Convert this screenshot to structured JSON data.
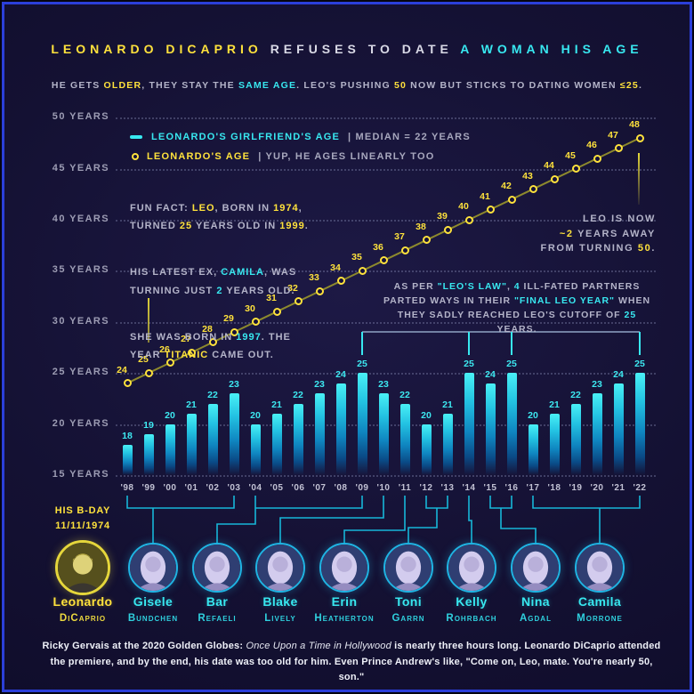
{
  "title_segments": [
    {
      "t": "LEONARDO DICAPRIO ",
      "s": "y"
    },
    {
      "t": "REFUSES TO DATE ",
      "s": "w"
    },
    {
      "t": "A WOMAN HIS AGE",
      "s": "c"
    }
  ],
  "subtitle_segments": [
    {
      "t": "HE GETS ",
      "s": "g"
    },
    {
      "t": "OLDER",
      "s": "y"
    },
    {
      "t": ", THEY STAY THE ",
      "s": "g"
    },
    {
      "t": "SAME AGE",
      "s": "c"
    },
    {
      "t": ". LEO'S PUSHING ",
      "s": "g"
    },
    {
      "t": "50",
      "s": "y"
    },
    {
      "t": " NOW BUT STICKS TO DATING WOMEN ",
      "s": "g"
    },
    {
      "t": "≤25",
      "s": "y"
    },
    {
      "t": ".",
      "s": "g"
    }
  ],
  "legend": {
    "girlfriend": {
      "label": "LEONARDO'S GIRLFRIEND'S AGE",
      "note": "|   MEDIAN = 22 YEARS"
    },
    "leo": {
      "label": "LEONARDO'S AGE",
      "note": "|   YUP, HE AGES LINEARLY TOO"
    }
  },
  "annotations": {
    "fun_fact": [
      [
        {
          "t": "FUN FACT: ",
          "s": "g"
        },
        {
          "t": "LEO",
          "s": "y"
        },
        {
          "t": ", BORN IN ",
          "s": "g"
        },
        {
          "t": "1974",
          "s": "y"
        },
        {
          "t": ",\nTURNED ",
          "s": "g"
        },
        {
          "t": "25",
          "s": "y"
        },
        {
          "t": " YEARS OLD IN ",
          "s": "g"
        },
        {
          "t": "1999",
          "s": "y"
        },
        {
          "t": ".",
          "s": "g"
        }
      ],
      [
        {
          "t": "HIS LATEST EX, ",
          "s": "g"
        },
        {
          "t": "CAMILA",
          "s": "c"
        },
        {
          "t": ", WAS\nTURNING JUST ",
          "s": "g"
        },
        {
          "t": "2",
          "s": "c"
        },
        {
          "t": " YEARS OLD.",
          "s": "g"
        }
      ],
      [
        {
          "t": "SHE WAS BORN IN ",
          "s": "g"
        },
        {
          "t": "1997",
          "s": "c"
        },
        {
          "t": ". THE\nYEAR ",
          "s": "g"
        },
        {
          "t": "TITANIC",
          "s": "y"
        },
        {
          "t": " CAME OUT.",
          "s": "g"
        }
      ]
    ],
    "leos_law": [
      {
        "t": "AS PER ",
        "s": "g"
      },
      {
        "t": "\"LEO'S LAW\"",
        "s": "c"
      },
      {
        "t": ", ",
        "s": "g"
      },
      {
        "t": "4",
        "s": "c"
      },
      {
        "t": " ILL-FATED PARTNERS\nPARTED WAYS IN THEIR ",
        "s": "g"
      },
      {
        "t": "\"FINAL LEO YEAR\"",
        "s": "c"
      },
      {
        "t": " WHEN\nTHEY SADLY REACHED LEO'S CUTOFF OF ",
        "s": "g"
      },
      {
        "t": "25",
        "s": "c"
      },
      {
        "t": " YEARS.",
        "s": "g"
      }
    ],
    "leo_now": [
      {
        "t": "LEO IS NOW\n",
        "s": "g"
      },
      {
        "t": "~2",
        "s": "y"
      },
      {
        "t": " YEARS AWAY\nFROM TURNING ",
        "s": "g"
      },
      {
        "t": "50",
        "s": "y"
      },
      {
        "t": ".",
        "s": "g"
      }
    ],
    "bday": "HIS B-DAY\n11/11/1974"
  },
  "chart_data": {
    "type": "bar+line",
    "x_labels": [
      "'98",
      "'99",
      "'00",
      "'01",
      "'02",
      "'03",
      "'04",
      "'05",
      "'06",
      "'07",
      "'08",
      "'09",
      "'10",
      "'11",
      "'12",
      "'13",
      "'14",
      "'15",
      "'16",
      "'17",
      "'18",
      "'19",
      "'20",
      "'21",
      "'22"
    ],
    "series": [
      {
        "name": "LEONARDO'S GIRLFRIEND'S AGE",
        "type": "bar",
        "values": [
          18,
          19,
          20,
          21,
          22,
          23,
          20,
          21,
          22,
          23,
          24,
          25,
          23,
          22,
          20,
          21,
          25,
          24,
          25,
          20,
          21,
          22,
          23,
          24,
          25
        ]
      },
      {
        "name": "LEONARDO'S AGE",
        "type": "line",
        "values": [
          24,
          25,
          26,
          27,
          28,
          29,
          30,
          31,
          32,
          33,
          34,
          35,
          36,
          37,
          38,
          39,
          40,
          41,
          42,
          43,
          44,
          45,
          46,
          47,
          48
        ]
      }
    ],
    "y_ticks": [
      {
        "value": 50,
        "label": "50 YEARS"
      },
      {
        "value": 45,
        "label": "45 YEARS"
      },
      {
        "value": 40,
        "label": "40 YEARS"
      },
      {
        "value": 35,
        "label": "35 YEARS"
      },
      {
        "value": 30,
        "label": "30 YEARS"
      },
      {
        "value": 25,
        "label": "25 YEARS"
      },
      {
        "value": 20,
        "label": "20 YEARS"
      },
      {
        "value": 15,
        "label": "15 YEARS"
      }
    ],
    "ylim": [
      15,
      50
    ],
    "grid": "dotted horizontal",
    "legend_position": "top-left inside plot",
    "median_girlfriend_age": 22,
    "law_year_indices": [
      11,
      16,
      18,
      24
    ]
  },
  "people": [
    {
      "first": "Leonardo",
      "last": "DiCaprio",
      "is_leo": true
    },
    {
      "first": "Gisele",
      "last": "Bundchen",
      "from": 0,
      "to": 5
    },
    {
      "first": "Bar",
      "last": "Refaeli",
      "from": 6,
      "to": 11
    },
    {
      "first": "Blake",
      "last": "Lively",
      "from": 12,
      "to": 12
    },
    {
      "first": "Erin",
      "last": "Heatherton",
      "from": 13,
      "to": 13
    },
    {
      "first": "Toni",
      "last": "Garrn",
      "from": 14,
      "to": 15
    },
    {
      "first": "Kelly",
      "last": "Rohrbach",
      "from": 16,
      "to": 16
    },
    {
      "first": "Nina",
      "last": "Agdal",
      "from": 17,
      "to": 18
    },
    {
      "first": "Camila",
      "last": "Morrone",
      "from": 19,
      "to": 24
    }
  ],
  "footer_segments": [
    {
      "t": "Ricky Gervais at the 2020 Golden Globes:  ",
      "s": "wb"
    },
    {
      "t": "Once Upon a Time in Hollywood",
      "s": "wi"
    },
    {
      "t": " is nearly three hours long. Leonardo DiCaprio attended the premiere, and by the end, his date was too old for him.  Even Prince Andrew's like, \"Come on, Leo, mate. You're nearly 50, son.\"",
      "s": "wb"
    }
  ],
  "colors": {
    "yellow": "#ffe23c",
    "cyan": "#38e8f0",
    "text_gray": "#b4b4c9",
    "line": "#938f2c",
    "bar_top": "#49f0f6",
    "border_blue": "#2b3fd9",
    "background": "#141133"
  }
}
